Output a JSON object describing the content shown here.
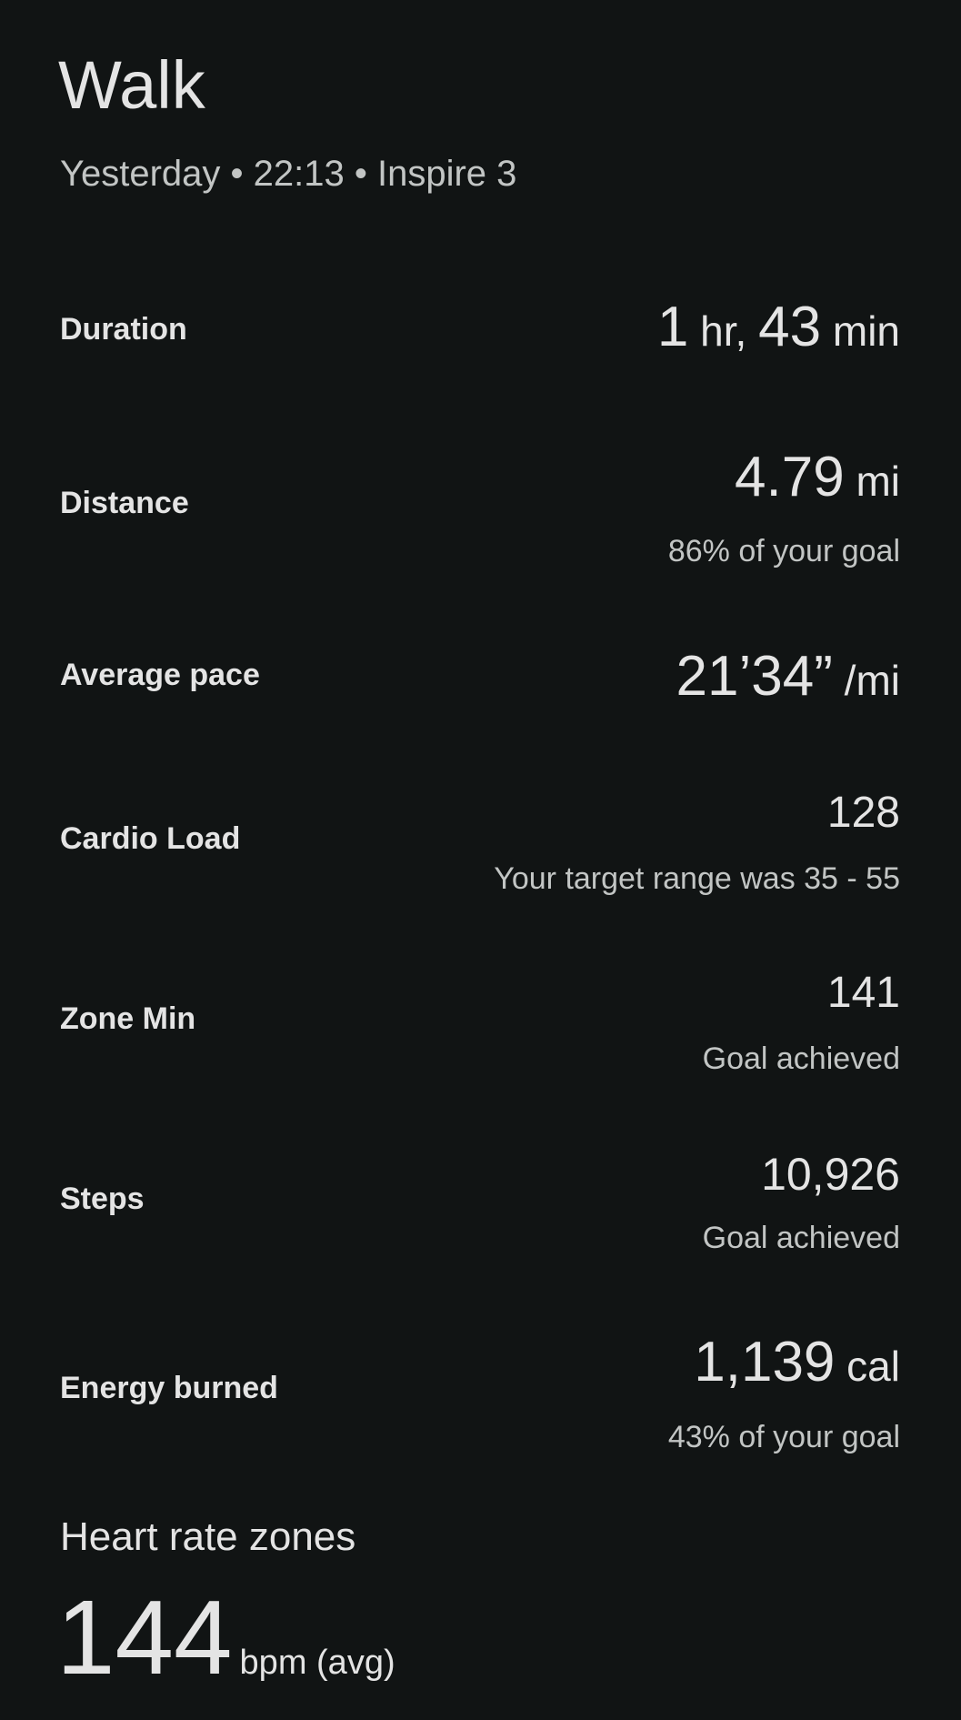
{
  "header": {
    "title": "Walk",
    "subtitle": "Yesterday • 22:13 • Inspire 3"
  },
  "stats": [
    {
      "label": "Duration",
      "value_parts": [
        "1",
        " hr, ",
        "43",
        " min"
      ]
    },
    {
      "label": "Distance",
      "value": "4.79",
      "unit": " mi",
      "note": "86% of your goal"
    },
    {
      "label": "Average pace",
      "value": "21’34”",
      "unit": " /mi"
    },
    {
      "label": "Cardio Load",
      "value": "128",
      "note": "Your target range was 35 - 55"
    },
    {
      "label": "Zone Min",
      "value": "141",
      "note": "Goal achieved"
    },
    {
      "label": "Steps",
      "value": "10,926",
      "note": "Goal achieved"
    },
    {
      "label": "Energy burned",
      "value": "1,139",
      "unit": " cal",
      "note": "43% of your goal"
    }
  ],
  "heart_rate": {
    "title": "Heart rate zones",
    "value": "144",
    "unit": "bpm (avg)"
  }
}
